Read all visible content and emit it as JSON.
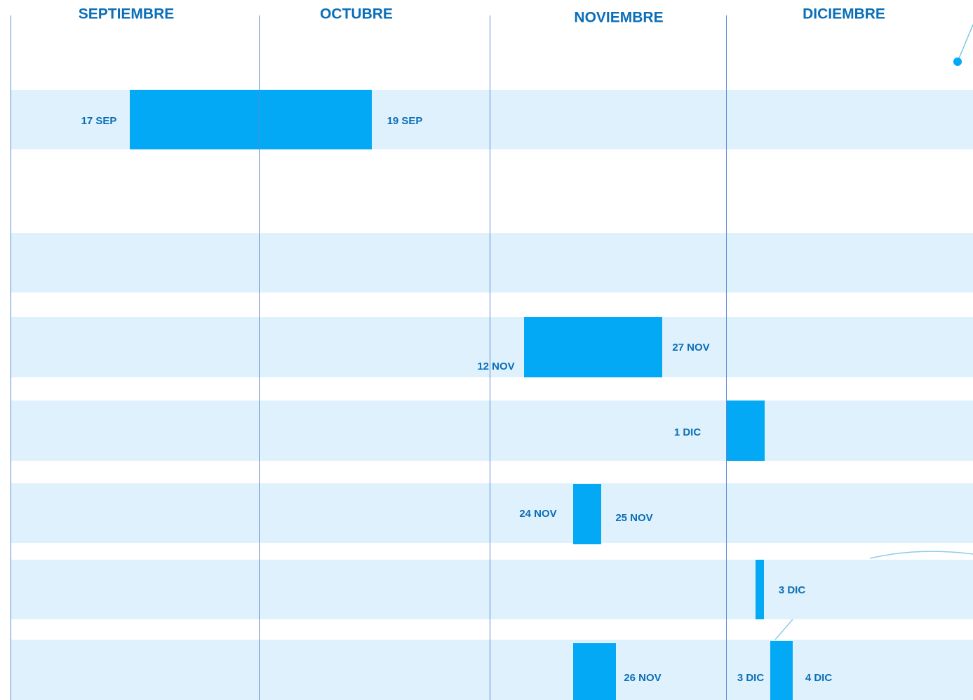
{
  "months": [
    "SEPTIEMBRE",
    "OCTUBRE",
    "NOVIEMBRE",
    "DICIEMBRE"
  ],
  "tasks": [
    {
      "start": "17 SEP",
      "end": "19  SEP"
    },
    {
      "start": "12 NOV",
      "end": "27 NOV"
    },
    {
      "start": "1 DIC"
    },
    {
      "start": "24 NOV",
      "end": "25 NOV"
    },
    {
      "end": "3 DIC"
    },
    {
      "end": "26 NOV"
    },
    {
      "start": "3 DIC",
      "end": "4 DIC"
    }
  ]
}
